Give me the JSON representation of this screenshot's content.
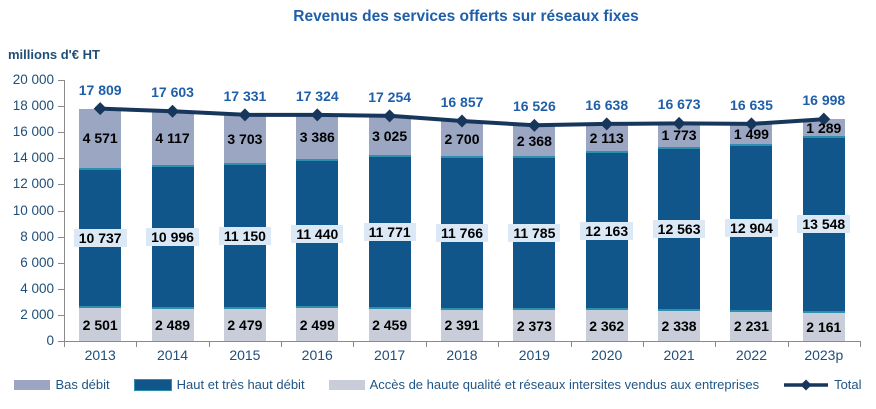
{
  "title": "Revenus des services offerts sur réseaux fixes",
  "y_axis": {
    "label": "millions d'€ HT",
    "ticks": [
      "0",
      "2 000",
      "4 000",
      "6 000",
      "8 000",
      "10 000",
      "12 000",
      "14 000",
      "16 000",
      "18 000",
      "20 000"
    ]
  },
  "chart_data": {
    "type": "bar",
    "stacked": true,
    "title": "Revenus des services offerts sur réseaux fixes",
    "ylabel": "millions d'€ HT",
    "ylim": [
      0,
      20000
    ],
    "y_tick_step": 2000,
    "grid": false,
    "legend_position": "bottom",
    "categories": [
      "2013",
      "2014",
      "2015",
      "2016",
      "2017",
      "2018",
      "2019",
      "2020",
      "2021",
      "2022",
      "2023p"
    ],
    "series": [
      {
        "name": "Accès de haute qualité et réseaux intersites vendus aux entreprises",
        "color": "#C8CDD9",
        "values": [
          2501,
          2489,
          2479,
          2499,
          2459,
          2391,
          2373,
          2362,
          2338,
          2231,
          2161
        ]
      },
      {
        "name": "Haut et très haut débit",
        "color": "#11568B",
        "border_color": "#2E8FAF",
        "label_background": "#DBE9F7",
        "values": [
          10737,
          10996,
          11150,
          11440,
          11771,
          11766,
          11785,
          12163,
          12563,
          12904,
          13548
        ]
      },
      {
        "name": "Bas débit",
        "color": "#9AA6C2",
        "values": [
          4571,
          4117,
          3703,
          3386,
          3025,
          2700,
          2368,
          2113,
          1773,
          1499,
          1289
        ]
      }
    ],
    "line_series": {
      "name": "Total",
      "color": "#17365C",
      "values": [
        17809,
        17603,
        17331,
        17324,
        17254,
        16857,
        16526,
        16638,
        16673,
        16635,
        16998
      ]
    }
  },
  "legend": {
    "items": [
      {
        "label": "Bas débit",
        "swatch": "box",
        "color": "#9AA6C2"
      },
      {
        "label": "Haut et très haut débit",
        "swatch": "box",
        "color": "#11568B",
        "border_color": "#2E8FAF"
      },
      {
        "label": "Accès de haute qualité et réseaux intersites vendus aux entreprises",
        "swatch": "box",
        "color": "#C8CDD9"
      },
      {
        "label": "Total",
        "swatch": "line-diamond",
        "color": "#17365C"
      }
    ]
  },
  "colors": {
    "title_text": "#1F5FA9",
    "axis_text": "#1F4E79",
    "legend_text": "#1F5586",
    "total_label_text": "#1F5FA9",
    "axis_line": "#8a8a8a",
    "middle_label_box": "#DBE9F7"
  }
}
